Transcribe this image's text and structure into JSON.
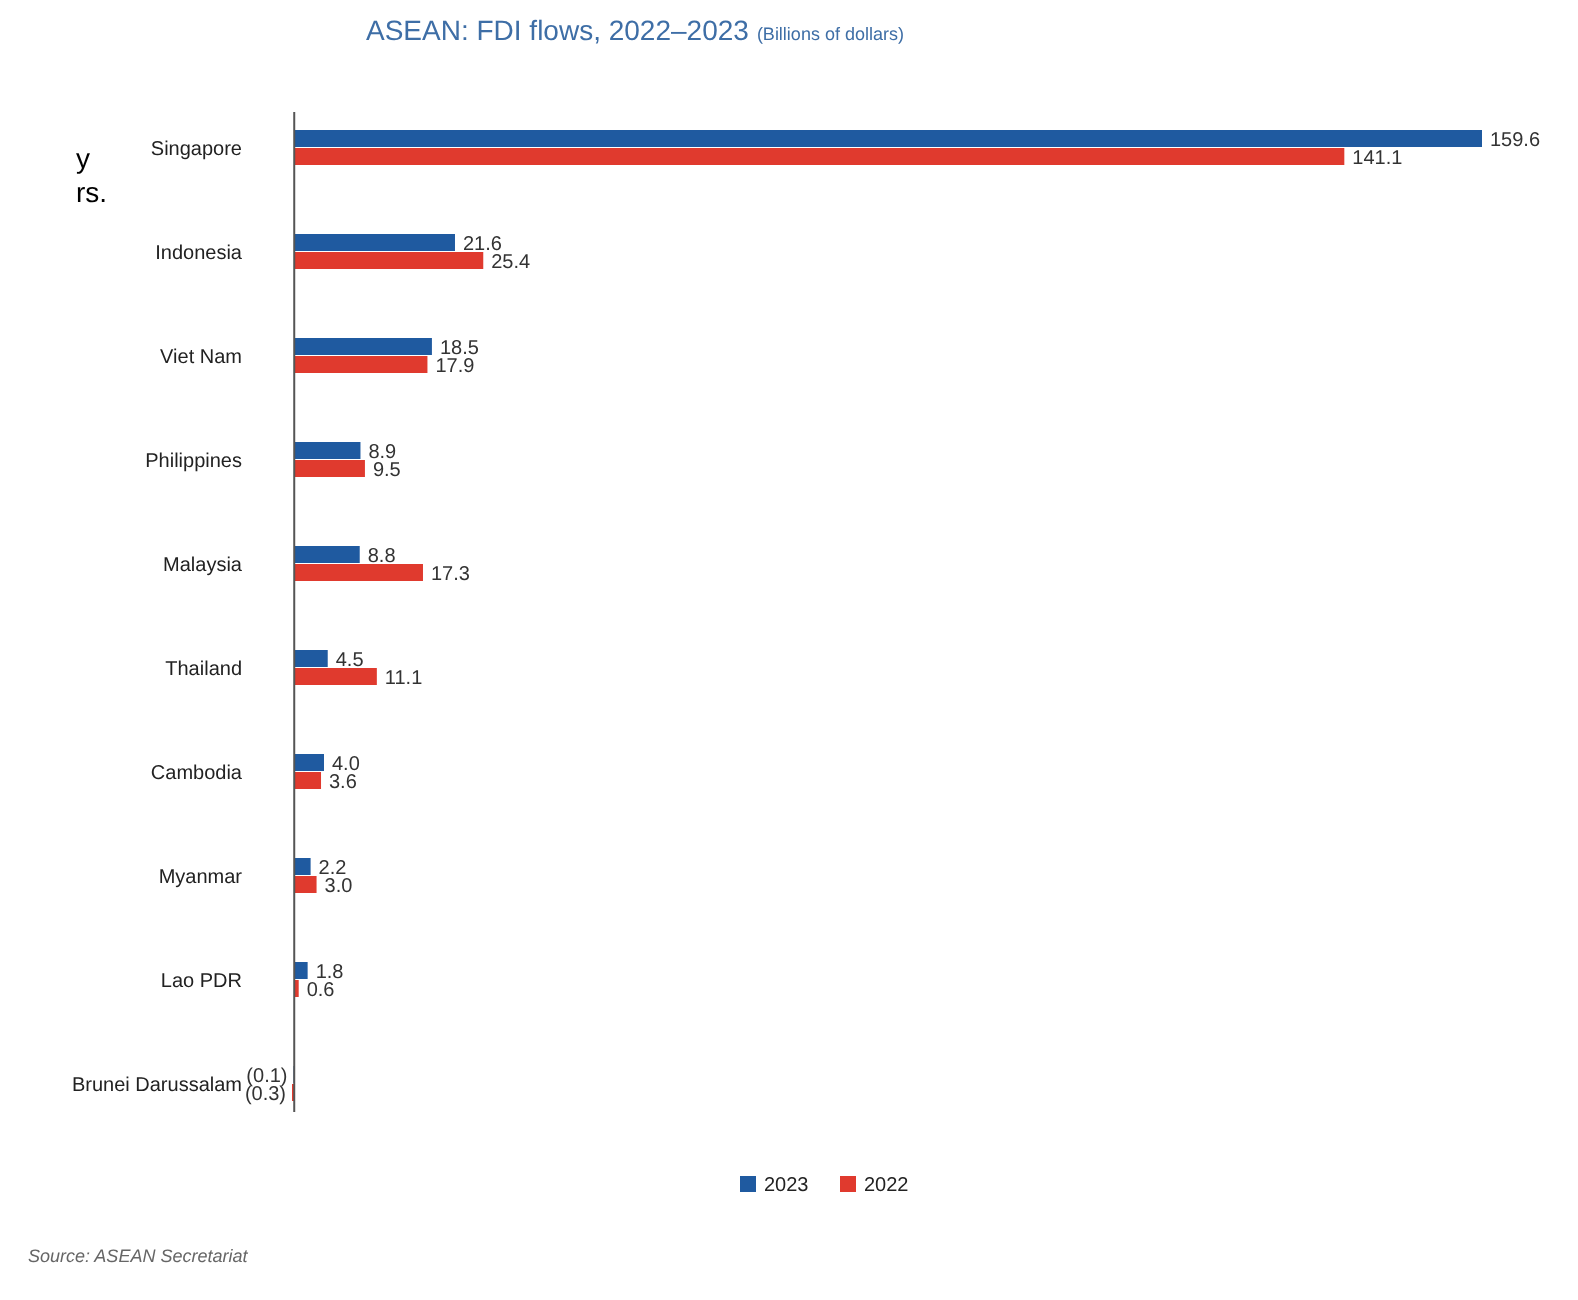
{
  "chart_data": {
    "type": "bar",
    "orientation": "horizontal",
    "title": "ASEAN: FDI flows, 2022–2023",
    "subtitle": "(Billions of dollars)",
    "categories": [
      "Singapore",
      "Indonesia",
      "Viet Nam",
      "Philippines",
      "Malaysia",
      "Thailand",
      "Cambodia",
      "Myanmar",
      "Lao PDR",
      "Brunei Darussalam"
    ],
    "series": [
      {
        "name": "2023",
        "color": "#1f5aa0",
        "values": [
          159.6,
          21.6,
          18.5,
          8.9,
          8.8,
          4.5,
          4.0,
          2.2,
          1.8,
          -0.1
        ],
        "value_labels": [
          "159.6",
          "21.6",
          "18.5",
          "8.9",
          "8.8",
          "4.5",
          "4.0",
          "2.2",
          "1.8",
          "(0.1)"
        ]
      },
      {
        "name": "2022",
        "color": "#e03a2e",
        "values": [
          141.1,
          25.4,
          17.9,
          9.5,
          17.3,
          11.1,
          3.6,
          3.0,
          0.6,
          -0.3
        ],
        "value_labels": [
          "141.1",
          "25.4",
          "17.9",
          "9.5",
          "17.3",
          "11.1",
          "3.6",
          "3.0",
          "0.6",
          "(0.3)"
        ]
      }
    ],
    "legend": "bottom",
    "annotations": [
      "Source: ASEAN Secretariat",
      "y",
      "rs."
    ]
  }
}
